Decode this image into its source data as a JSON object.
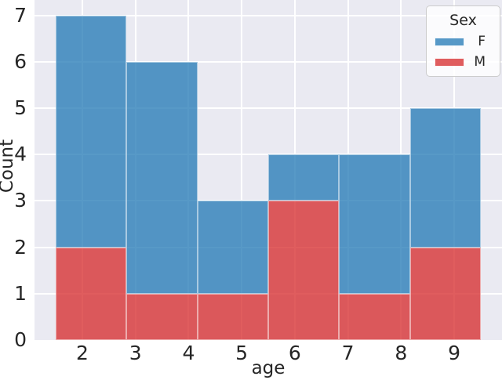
{
  "figure": {
    "background": "#ffffff"
  },
  "chart_data": {
    "type": "histogram",
    "stacked": true,
    "title": "",
    "xlabel": "age",
    "ylabel": "Count",
    "bin_edges": [
      1.5,
      2.8333,
      4.1667,
      5.5,
      6.8333,
      8.1667,
      9.5
    ],
    "series": [
      {
        "name": "M",
        "color": "rgba(214,39,40,0.75)",
        "values": [
          2,
          1,
          1,
          3,
          1,
          2
        ]
      },
      {
        "name": "F",
        "color": "rgba(31,119,180,0.75)",
        "values": [
          5,
          5,
          2,
          1,
          3,
          3
        ]
      }
    ],
    "stack_order_bottom_to_top": [
      "M",
      "F"
    ],
    "bin_totals": [
      7,
      6,
      3,
      4,
      4,
      5
    ],
    "x_tick_labels": [
      "2",
      "3",
      "4",
      "5",
      "6",
      "7",
      "8",
      "9"
    ],
    "x_tick_values": [
      2,
      3,
      4,
      5,
      6,
      7,
      8,
      9
    ],
    "y_tick_labels": [
      "0",
      "1",
      "2",
      "3",
      "4",
      "5",
      "6",
      "7"
    ],
    "y_tick_values": [
      0,
      1,
      2,
      3,
      4,
      5,
      6,
      7
    ],
    "xlim": [
      1.1,
      9.9
    ],
    "ylim": [
      0,
      7.33
    ],
    "grid": true,
    "legend": {
      "title": "Sex",
      "position": "upper-right",
      "entries": [
        {
          "label": "F",
          "color": "rgba(31,119,180,0.75)"
        },
        {
          "label": "M",
          "color": "rgba(214,39,40,0.75)"
        }
      ]
    },
    "colors": {
      "plot_background": "#eaeaf2",
      "gridline": "#ffffff",
      "text": "#262626",
      "legend_background": "rgba(255,255,255,0.8)",
      "legend_border": "#cccccc"
    }
  }
}
